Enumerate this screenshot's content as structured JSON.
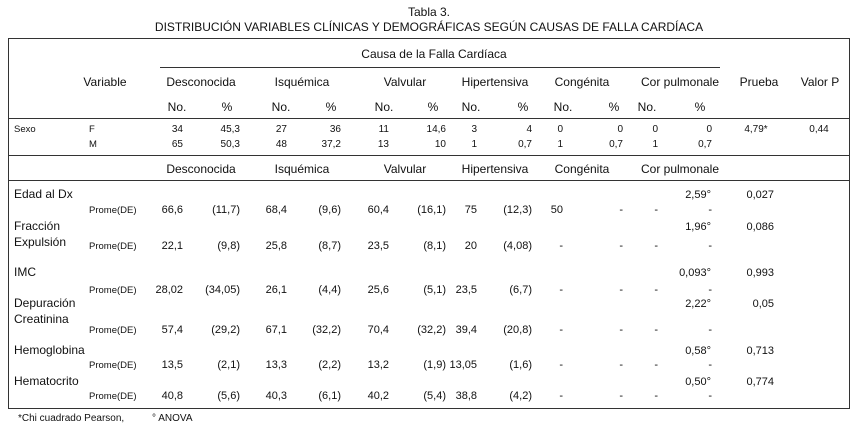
{
  "caption": "Tabla 3.",
  "title": "DISTRIBUCIÓN  VARIABLES CLÍNICAS Y DEMOGRÁFICAS SEGÚN CAUSAS DE FALLA CARDÍACA",
  "group_header": "Causa de la Falla Cardíaca",
  "header": {
    "variable": "Variable",
    "desconocida": "Desconocida",
    "isquemica": "Isquémica",
    "valvular": "Valvular",
    "hipertensiva": "Hipertensiva",
    "congenita": "Congénita",
    "cor_pulmonale": "Cor pulmonale",
    "prueba": "Prueba",
    "valor_p": "Valor P"
  },
  "subheader": {
    "no": "No.",
    "pct": "%"
  },
  "sexo": {
    "label": "Sexo",
    "f_label": "F",
    "m_label": "M",
    "f": [
      "34",
      "45,3",
      "27",
      "36",
      "11",
      "14,6",
      "3",
      "4",
      "0",
      "0",
      "0",
      "0"
    ],
    "m": [
      "65",
      "50,3",
      "48",
      "37,2",
      "13",
      "10",
      "1",
      "0,7",
      "1",
      "0,7",
      "1",
      "0,7"
    ],
    "prueba": "4,79*",
    "valor_p": "0,44"
  },
  "header2": {
    "desconocida": "Desconocida",
    "isquemica": "Isquémica",
    "valvular": "Valvular",
    "hipertensiva": "Hipertensiva",
    "congenita": "Congénita",
    "cor_pulmonale": "Cor pulmonale"
  },
  "stat_label": "Prome(DE)",
  "rows": [
    {
      "name": "Edad al Dx",
      "name2": "",
      "prueba": "2,59°",
      "p": "0,027",
      "vals": [
        "66,6",
        "(11,7)",
        "68,4",
        "(9,6)",
        "60,4",
        "(16,1)",
        "75",
        "(12,3)",
        "50",
        "-",
        "-",
        "-"
      ]
    },
    {
      "name": "Fracción",
      "name2": "Expulsión",
      "prueba": "1,96°",
      "p": "0,086",
      "vals": [
        "22,1",
        "(9,8)",
        "25,8",
        "(8,7)",
        "23,5",
        "(8,1)",
        "20",
        "(4,08)",
        "-",
        "-",
        "-",
        "-"
      ]
    },
    {
      "name": "IMC",
      "name2": "",
      "prueba": "0,093°",
      "p": "0,993",
      "vals": [
        "28,02",
        "(34,05)",
        "26,1",
        "(4,4)",
        "25,6",
        "(5,1)",
        "23,5",
        "(6,7)",
        "-",
        "-",
        "-",
        "-"
      ]
    },
    {
      "name": "Depuración",
      "name2": "Creatinina",
      "prueba": "2,22°",
      "p": "0,05",
      "vals": [
        "57,4",
        "(29,2)",
        "67,1",
        "(32,2)",
        "70,4",
        "(32,2)",
        "39,4",
        "(20,8)",
        "-",
        "-",
        "-",
        "-"
      ]
    },
    {
      "name": "Hemoglobina",
      "name2": "",
      "prueba": "0,58°",
      "p": "0,713",
      "vals": [
        "13,5",
        "(2,1)",
        "13,3",
        "(2,2)",
        "13,2",
        "(1,9)",
        "13,05",
        "(1,6)",
        "-",
        "-",
        "-",
        "-"
      ]
    },
    {
      "name": "Hematocrito",
      "name2": "",
      "prueba": "0,50°",
      "p": "0,774",
      "vals": [
        "40,8",
        "(5,6)",
        "40,3",
        "(6,1)",
        "40,2",
        "(5,4)",
        "38,8",
        "(4,2)",
        "-",
        "-",
        "-",
        "-"
      ]
    }
  ],
  "footnote1": "*Chi cuadrado Pearson,",
  "footnote2": "° ANOVA"
}
